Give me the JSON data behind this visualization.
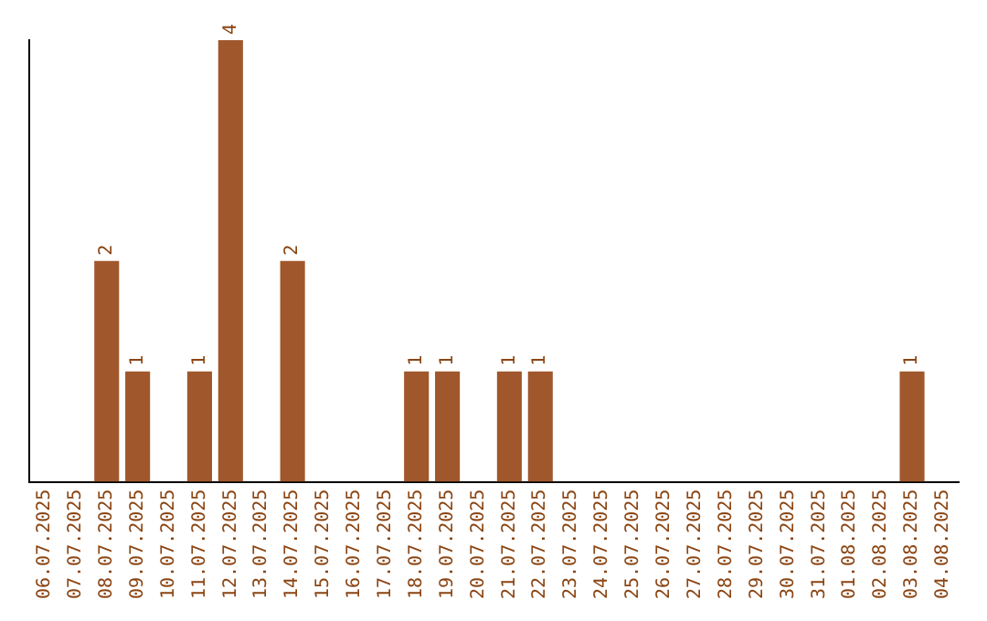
{
  "chart_data": {
    "type": "bar",
    "categories": [
      "06.07.2025",
      "07.07.2025",
      "08.07.2025",
      "09.07.2025",
      "10.07.2025",
      "11.07.2025",
      "12.07.2025",
      "13.07.2025",
      "14.07.2025",
      "15.07.2025",
      "16.07.2025",
      "17.07.2025",
      "18.07.2025",
      "19.07.2025",
      "20.07.2025",
      "21.07.2025",
      "22.07.2025",
      "23.07.2025",
      "24.07.2025",
      "25.07.2025",
      "26.07.2025",
      "27.07.2025",
      "28.07.2025",
      "29.07.2025",
      "30.07.2025",
      "31.07.2025",
      "01.08.2025",
      "02.08.2025",
      "03.08.2025",
      "04.08.2025"
    ],
    "values": [
      0,
      0,
      2,
      1,
      0,
      1,
      4,
      0,
      2,
      0,
      0,
      0,
      1,
      1,
      0,
      1,
      1,
      0,
      0,
      0,
      0,
      0,
      0,
      0,
      0,
      0,
      0,
      0,
      1,
      0
    ],
    "value_labels": [
      null,
      null,
      "2",
      "1",
      null,
      "1",
      "4",
      null,
      "2",
      null,
      null,
      null,
      "1",
      "1",
      null,
      "1",
      "1",
      null,
      null,
      null,
      null,
      null,
      null,
      null,
      null,
      null,
      null,
      null,
      "1",
      null
    ],
    "color": "#a0572b",
    "tick_labels": "x",
    "grid": false,
    "legend": false
  }
}
